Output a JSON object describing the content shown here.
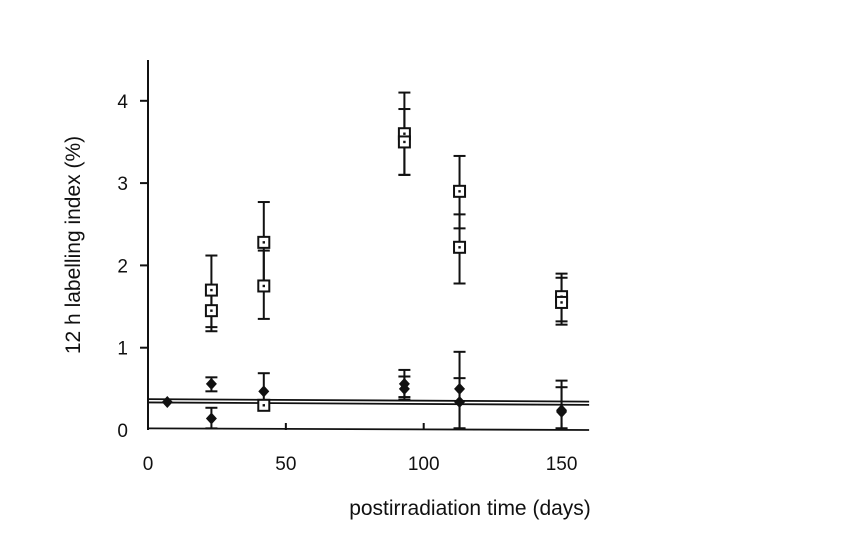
{
  "chart_data": {
    "type": "scatter",
    "title": "",
    "xlabel": "postirradiation time (days)",
    "ylabel": "12 h labelling index (%)",
    "xlim": [
      0,
      160
    ],
    "ylim": [
      0,
      4.5
    ],
    "xticks": [
      0,
      50,
      100,
      150
    ],
    "yticks": [
      0,
      1,
      2,
      3,
      4
    ],
    "xtick_labels": [
      "0",
      "50",
      "100",
      "150"
    ],
    "ytick_labels": [
      "0",
      "1",
      "2",
      "3",
      "4"
    ],
    "grid": false,
    "legend": "none",
    "series": [
      {
        "marker": "open-square",
        "points": [
          {
            "x": 23,
            "y": 1.7,
            "err_low": 1.2,
            "err_high": 2.12
          },
          {
            "x": 23,
            "y": 1.45,
            "err_low": 1.25,
            "err_high": 1.65
          },
          {
            "x": 42,
            "y": 2.28,
            "err_low": 1.8,
            "err_high": 2.77
          },
          {
            "x": 42,
            "y": 1.75,
            "err_low": 1.35,
            "err_high": 2.18
          },
          {
            "x": 93,
            "y": 3.6,
            "err_low": 3.1,
            "err_high": 4.1
          },
          {
            "x": 93,
            "y": 3.5,
            "err_low": 3.1,
            "err_high": 3.9
          },
          {
            "x": 113,
            "y": 2.9,
            "err_low": 2.45,
            "err_high": 3.33
          },
          {
            "x": 113,
            "y": 2.22,
            "err_low": 1.78,
            "err_high": 2.62
          },
          {
            "x": 150,
            "y": 1.62,
            "err_low": 1.32,
            "err_high": 1.9
          },
          {
            "x": 150,
            "y": 1.55,
            "err_low": 1.28,
            "err_high": 1.85
          },
          {
            "x": 42,
            "y": 0.3,
            "err_low": 0.27,
            "err_high": 0.33
          }
        ]
      },
      {
        "marker": "filled-diamond",
        "points": [
          {
            "x": 7,
            "y": 0.34,
            "err_low": 0.34,
            "err_high": 0.34
          },
          {
            "x": 23,
            "y": 0.56,
            "err_low": 0.47,
            "err_high": 0.64
          },
          {
            "x": 23,
            "y": 0.14,
            "err_low": 0.02,
            "err_high": 0.27
          },
          {
            "x": 42,
            "y": 0.47,
            "err_low": 0.32,
            "err_high": 0.69
          },
          {
            "x": 93,
            "y": 0.56,
            "err_low": 0.4,
            "err_high": 0.73
          },
          {
            "x": 93,
            "y": 0.5,
            "err_low": 0.37,
            "err_high": 0.65
          },
          {
            "x": 113,
            "y": 0.5,
            "err_low": 0.02,
            "err_high": 0.95
          },
          {
            "x": 113,
            "y": 0.34,
            "err_low": 0.02,
            "err_high": 0.63
          },
          {
            "x": 150,
            "y": 0.24,
            "err_low": 0.02,
            "err_high": 0.6
          },
          {
            "x": 150,
            "y": 0.22,
            "err_low": 0.02,
            "err_high": 0.52
          }
        ]
      }
    ],
    "reference_lines": [
      {
        "x": [
          0,
          160
        ],
        "y": [
          0.375,
          0.345
        ]
      },
      {
        "x": [
          0,
          160
        ],
        "y": [
          0.335,
          0.305
        ]
      },
      {
        "x": [
          0,
          160
        ],
        "y": [
          0.02,
          0.0
        ]
      }
    ]
  }
}
